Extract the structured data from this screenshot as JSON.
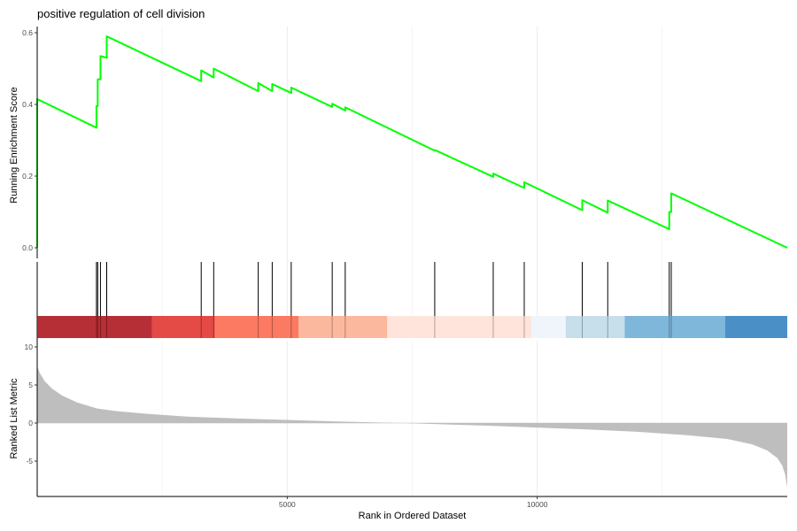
{
  "chart_data": {
    "type": "line",
    "title": "positive regulation of cell division",
    "xlabel": "Rank in Ordered Dataset",
    "x_range": [
      0,
      15000
    ],
    "x_ticks": [
      5000,
      10000
    ],
    "x_tick_labels": [
      "5000",
      "10000"
    ],
    "top_panel": {
      "ylabel": "Running Enrichment Score",
      "ylim": [
        0.0,
        0.6
      ],
      "y_ticks": [
        0.0,
        0.2,
        0.4,
        0.6
      ],
      "y_tick_labels": [
        "0.0",
        "0.2",
        "0.4",
        "0.6"
      ],
      "line_color": "#00ff00",
      "series": [
        {
          "x": [
            0,
            0,
            1185,
            1185,
            1210,
            1210,
            1265,
            1265,
            1390,
            1390,
            3280,
            3280,
            3530,
            3530,
            4420,
            4420,
            4700,
            4700,
            5080,
            5080,
            5900,
            5900,
            6160,
            6160,
            7950,
            7950,
            9120,
            9120,
            9740,
            9740,
            10900,
            10900,
            11410,
            11410,
            12640,
            12640,
            12680,
            12680,
            15000
          ],
          "y": [
            0.0,
            0.415,
            0.335,
            0.395,
            0.395,
            0.47,
            0.47,
            0.535,
            0.53,
            0.59,
            0.465,
            0.495,
            0.475,
            0.5,
            0.437,
            0.46,
            0.437,
            0.457,
            0.432,
            0.447,
            0.393,
            0.402,
            0.383,
            0.392,
            0.271,
            0.273,
            0.198,
            0.207,
            0.167,
            0.183,
            0.105,
            0.133,
            0.098,
            0.132,
            0.052,
            0.1,
            0.1,
            0.152,
            0.0
          ]
        }
      ]
    },
    "gene_hits": [
      0,
      1185,
      1210,
      1265,
      1390,
      3280,
      3530,
      4420,
      4700,
      5080,
      5900,
      6160,
      7950,
      9120,
      9740,
      10900,
      11410,
      12640,
      12680
    ],
    "color_bar": {
      "segments": [
        {
          "x0": 0,
          "x1": 2300,
          "color": "#b2242b"
        },
        {
          "x0": 2300,
          "x1": 3550,
          "color": "#e3403c"
        },
        {
          "x0": 3550,
          "x1": 5230,
          "color": "#fb7358"
        },
        {
          "x0": 5230,
          "x1": 7000,
          "color": "#fcb49a"
        },
        {
          "x0": 7000,
          "x1": 9880,
          "color": "#fee3d8"
        },
        {
          "x0": 9880,
          "x1": 10570,
          "color": "#eff3fb"
        },
        {
          "x0": 10570,
          "x1": 11750,
          "color": "#c4dcea"
        },
        {
          "x0": 11750,
          "x1": 13760,
          "color": "#78b3d9"
        },
        {
          "x0": 13760,
          "x1": 15000,
          "color": "#4189c4"
        }
      ]
    },
    "bottom_panel": {
      "ylabel": "Ranked List Metric",
      "ylim": [
        -9.5,
        10.5
      ],
      "y_ticks": [
        -5,
        0,
        5,
        10
      ],
      "y_tick_labels": [
        "-5",
        "0",
        "5",
        "10"
      ],
      "fill_color": "#bebebe",
      "series": [
        {
          "x": [
            0,
            50,
            150,
            300,
            500,
            800,
            1200,
            1600,
            2200,
            3000,
            4000,
            5000,
            6000,
            7000,
            7300,
            8000,
            9000,
            10000,
            11000,
            12000,
            13000,
            13800,
            14300,
            14600,
            14800,
            14900,
            14960,
            15000
          ],
          "y": [
            7.5,
            6.6,
            5.5,
            4.5,
            3.6,
            2.7,
            1.9,
            1.55,
            1.2,
            0.85,
            0.6,
            0.4,
            0.2,
            0.05,
            0.0,
            -0.15,
            -0.35,
            -0.6,
            -0.85,
            -1.15,
            -1.6,
            -2.1,
            -2.8,
            -3.6,
            -4.6,
            -5.6,
            -6.8,
            -8.5
          ]
        }
      ]
    }
  }
}
